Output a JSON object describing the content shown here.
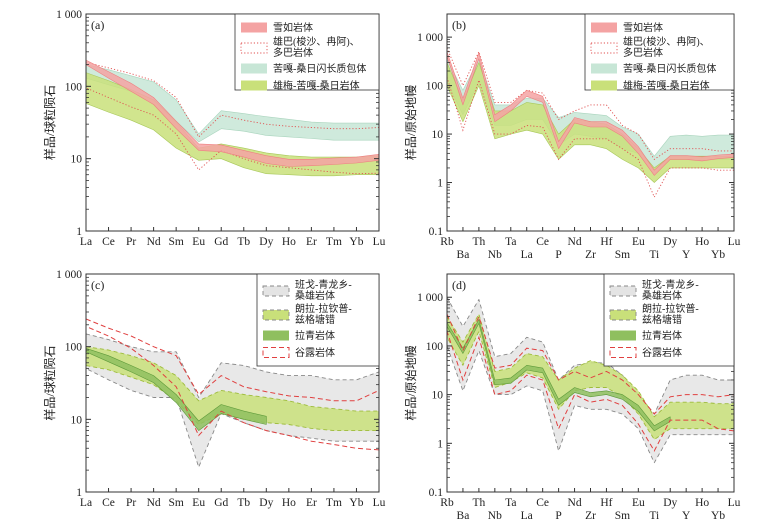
{
  "chart_data": [
    {
      "type": "area",
      "panel_label": "(a)",
      "ylabel": "样品/球粒陨石",
      "scale": "log",
      "ylim": [
        1,
        1000
      ],
      "yticks": [
        "1",
        "10",
        "100",
        "1 000"
      ],
      "categories": [
        "La",
        "Ce",
        "Pr",
        "Nd",
        "Sm",
        "Eu",
        "Gd",
        "Tb",
        "Dy",
        "Ho",
        "Er",
        "Tm",
        "Yb",
        "Lu"
      ],
      "legend_position": "top-right",
      "legend": [
        {
          "label": "雪如岩体",
          "style": "fill",
          "color": "#f4a3a3"
        },
        {
          "label": "雄巴(梭沙、冉阿)、\n多巴岩体",
          "style": "dotted",
          "color": "#e05050"
        },
        {
          "label": "苦嘎-桑日闪长质包体",
          "style": "fill",
          "color": "#c7e6d6"
        },
        {
          "label": "雄梅-苦嘎-桑日岩体",
          "style": "fill",
          "color": "#c9e07a"
        }
      ],
      "series": [
        {
          "name": "苦嘎-桑日闪长质包体",
          "style": "fill",
          "color": "#c7e6d6",
          "stroke": "#a9d4bd",
          "upper": [
            200,
            170,
            140,
            115,
            65,
            22,
            46,
            42,
            38,
            35,
            32,
            31,
            31,
            31
          ],
          "lower": [
            130,
            105,
            85,
            65,
            33,
            17,
            26,
            24,
            21,
            20,
            19,
            18,
            18,
            18
          ]
        },
        {
          "name": "雄梅-苦嘎-桑日岩体",
          "style": "fill",
          "color": "#c9e07a",
          "stroke": "#a8c85a",
          "upper": [
            155,
            120,
            90,
            65,
            32,
            14,
            16,
            14,
            12,
            11,
            10.5,
            10.5,
            10.5,
            11
          ],
          "lower": [
            58,
            44,
            34,
            25,
            14,
            9.5,
            10,
            7.5,
            6.2,
            6,
            5.8,
            5.8,
            6,
            6
          ]
        },
        {
          "name": "雄巴(梭沙、冉阿)、多巴岩体",
          "style": "dotted",
          "color": "#e05050",
          "upper": [
            215,
            180,
            150,
            120,
            70,
            20,
            40,
            34,
            30,
            28,
            27,
            26,
            26,
            27
          ],
          "lower": [
            95,
            70,
            52,
            40,
            22,
            7,
            13,
            10,
            8,
            7.5,
            7,
            6.5,
            6.2,
            6.3
          ]
        },
        {
          "name": "雪如岩体",
          "style": "fill",
          "color": "#f4a3a3",
          "stroke": "#ee8080",
          "upper": [
            230,
            160,
            110,
            70,
            33,
            16,
            15.5,
            13,
            11,
            9.8,
            9.8,
            10.2,
            10.5,
            11.5
          ],
          "lower": [
            200,
            130,
            85,
            56,
            26,
            13,
            12.5,
            10.5,
            8.6,
            7.8,
            8,
            8.3,
            8.7,
            9.5
          ]
        }
      ]
    },
    {
      "type": "area",
      "panel_label": "(b)",
      "ylabel": "样品/原始地幔",
      "scale": "log",
      "ylim": [
        0.1,
        3000
      ],
      "yticks": [
        "0.1",
        "1",
        "10",
        "100",
        "1 000"
      ],
      "categories": [
        "Rb",
        "Ba",
        "Th",
        "Nb",
        "Ta",
        "La",
        "Ce",
        "P",
        "Nd",
        "Zr",
        "Hf",
        "Sm",
        "Eu",
        "Ti",
        "Dy",
        "Y",
        "Ho",
        "Yb",
        "Lu"
      ],
      "legend_position": "top-right",
      "legend": [
        {
          "label": "雪如岩体",
          "style": "fill",
          "color": "#f4a3a3"
        },
        {
          "label": "雄巴(梭沙、冉阿)、\n多巴岩体",
          "style": "dotted",
          "color": "#e05050"
        },
        {
          "label": "苦嘎-桑日闪长质包体",
          "style": "fill",
          "color": "#c7e6d6"
        },
        {
          "label": "雄梅-苦嘎-桑日岩体",
          "style": "fill",
          "color": "#c9e07a"
        }
      ],
      "series": [
        {
          "name": "苦嘎-桑日闪长质包体",
          "style": "fill",
          "color": "#c7e6d6",
          "stroke": "#a9d4bd",
          "upper": [
            350,
            80,
            350,
            40,
            40,
            55,
            55,
            22,
            28,
            26,
            24,
            14,
            10,
            3.5,
            9,
            9.5,
            9,
            9.5,
            9.5
          ],
          "lower": [
            120,
            25,
            120,
            15,
            15,
            20,
            20,
            6,
            10,
            9,
            8,
            5,
            4,
            1.5,
            3,
            3,
            3,
            3,
            3
          ]
        },
        {
          "name": "雄梅-苦嘎-桑日岩体",
          "style": "fill",
          "color": "#c9e07a",
          "stroke": "#a8c85a",
          "upper": [
            300,
            50,
            300,
            30,
            30,
            45,
            40,
            10,
            20,
            18,
            16,
            10,
            5,
            2,
            3.5,
            3.5,
            3.5,
            3.5,
            3.5
          ],
          "lower": [
            100,
            18,
            100,
            8,
            10,
            12,
            10,
            3,
            6,
            6,
            5,
            3,
            2,
            1,
            2,
            2,
            2,
            2,
            2
          ]
        },
        {
          "name": "雄巴(梭沙、冉阿)、多巴岩体",
          "style": "dotted",
          "color": "#e05050",
          "upper": [
            600,
            100,
            500,
            45,
            45,
            80,
            70,
            20,
            30,
            40,
            40,
            15,
            10,
            3,
            5,
            5,
            5,
            4.5,
            4.5
          ],
          "lower": [
            150,
            12,
            130,
            10,
            10,
            15,
            14,
            3,
            8,
            8,
            8,
            5,
            3,
            0.5,
            2,
            2,
            2,
            1.8,
            1.8
          ]
        },
        {
          "name": "雪如岩体",
          "style": "fill",
          "color": "#f4a3a3",
          "stroke": "#ee8080",
          "upper": [
            500,
            55,
            480,
            25,
            40,
            80,
            60,
            7,
            22,
            18,
            18,
            12,
            5.5,
            1.8,
            3.6,
            3.6,
            3.4,
            3.7,
            3.9
          ],
          "lower": [
            400,
            40,
            360,
            18,
            30,
            60,
            45,
            5,
            17,
            14,
            14,
            9,
            4,
            1.4,
            3,
            3,
            2.8,
            3.1,
            3.3
          ]
        }
      ]
    },
    {
      "type": "area",
      "panel_label": "(c)",
      "ylabel": "样品/球粒陨石",
      "scale": "log",
      "ylim": [
        1,
        1000
      ],
      "yticks": [
        "1",
        "10",
        "100",
        "1 000"
      ],
      "categories": [
        "La",
        "Ce",
        "Pr",
        "Nd",
        "Sm",
        "Eu",
        "Gd",
        "Tb",
        "Dy",
        "Ho",
        "Er",
        "Tm",
        "Yb",
        "Lu"
      ],
      "legend_position": "top-right",
      "legend": [
        {
          "label": "班戈-青龙乡-\n桑雄岩体",
          "style": "dashed-fill",
          "color": "#e4e4e4"
        },
        {
          "label": "朗拉-拉钦普-\n兹格塘错",
          "style": "dashed-fill",
          "color": "#c9e07a"
        },
        {
          "label": "拉青岩体",
          "style": "fill",
          "color": "#8fbf5f"
        },
        {
          "label": "谷露岩体",
          "style": "dashed",
          "color": "#e04040"
        }
      ],
      "series": [
        {
          "name": "班戈-青龙乡-桑雄岩体",
          "style": "dashed-fill",
          "color": "#e4e4e4",
          "stroke": "#888888",
          "upper": [
            150,
            125,
            100,
            85,
            85,
            20,
            60,
            55,
            45,
            40,
            40,
            35,
            35,
            45
          ],
          "lower": [
            50,
            35,
            25,
            20,
            20,
            2.2,
            12,
            9,
            7,
            6,
            5.5,
            5,
            5,
            5
          ]
        },
        {
          "name": "朗拉-拉钦普-兹格塘错",
          "style": "dashed-fill",
          "color": "#c9e07a",
          "stroke": "#9ebc3c",
          "upper": [
            100,
            90,
            75,
            60,
            40,
            18,
            25,
            22,
            20,
            18,
            15,
            14,
            13,
            13
          ],
          "lower": [
            55,
            48,
            38,
            30,
            18,
            8.5,
            12,
            10,
            9,
            8.5,
            7.5,
            7,
            7,
            7
          ]
        },
        {
          "name": "拉青岩体",
          "style": "fill",
          "color": "#8fbf5f",
          "stroke": "#5e9a3a",
          "upper": [
            95,
            75,
            55,
            40,
            22,
            9.5,
            16,
            13,
            11
          ],
          "lower": [
            85,
            62,
            45,
            32,
            17,
            7,
            12,
            10,
            8.5
          ]
        },
        {
          "name": "谷露岩体",
          "style": "dashed",
          "color": "#e04040",
          "upper": [
            240,
            180,
            140,
            100,
            75,
            22,
            40,
            28,
            24,
            21,
            20,
            18,
            18,
            25
          ],
          "lower": [
            190,
            140,
            95,
            55,
            28,
            6,
            13,
            9,
            7,
            6,
            5,
            4.5,
            4,
            3.8
          ]
        }
      ]
    },
    {
      "type": "area",
      "panel_label": "(d)",
      "ylabel": "样品/原始地幔",
      "scale": "log",
      "ylim": [
        0.1,
        3000
      ],
      "yticks": [
        "0.1",
        "1",
        "10",
        "100",
        "1 000"
      ],
      "categories": [
        "Rb",
        "Ba",
        "Th",
        "Nb",
        "Ta",
        "La",
        "Ce",
        "P",
        "Nd",
        "Zr",
        "Hf",
        "Sm",
        "Eu",
        "Ti",
        "Dy",
        "Y",
        "Ho",
        "Yb",
        "Lu"
      ],
      "legend_position": "top-right",
      "legend": [
        {
          "label": "班戈-青龙乡-\n桑雄岩体",
          "style": "dashed-fill",
          "color": "#e4e4e4"
        },
        {
          "label": "朗拉-拉钦普-\n兹格塘错",
          "style": "dashed-fill",
          "color": "#c9e07a"
        },
        {
          "label": "拉青岩体",
          "style": "fill",
          "color": "#8fbf5f"
        },
        {
          "label": "谷露岩体",
          "style": "dashed",
          "color": "#e04040"
        }
      ],
      "series": [
        {
          "name": "班戈-青龙乡-桑雄岩体",
          "style": "dashed-fill",
          "color": "#e4e4e4",
          "stroke": "#888888",
          "upper": [
            1000,
            250,
            900,
            60,
            70,
            150,
            120,
            20,
            40,
            45,
            45,
            25,
            10,
            4,
            20,
            25,
            25,
            20,
            20
          ],
          "lower": [
            100,
            12,
            80,
            10,
            10,
            15,
            12,
            0.7,
            6,
            5,
            5,
            4,
            2,
            0.4,
            1.5,
            1.5,
            1.5,
            1.5,
            1.5
          ]
        },
        {
          "name": "朗拉-拉钦普-兹格塘错",
          "style": "dashed-fill",
          "color": "#c9e07a",
          "stroke": "#9ebc3c",
          "upper": [
            400,
            120,
            450,
            30,
            35,
            70,
            60,
            20,
            35,
            50,
            40,
            25,
            12,
            3.5,
            7,
            7,
            7,
            6.5,
            6.5
          ],
          "lower": [
            150,
            40,
            200,
            14,
            18,
            28,
            22,
            5,
            12,
            14,
            14,
            9,
            4,
            1.2,
            2,
            2,
            2,
            2,
            2
          ]
        },
        {
          "name": "拉青岩体",
          "style": "fill",
          "color": "#8fbf5f",
          "stroke": "#5e9a3a",
          "upper": [
            300,
            90,
            350,
            20,
            22,
            40,
            35,
            8,
            14,
            11,
            12,
            10,
            6,
            2.3,
            3.5
          ],
          "lower": [
            250,
            70,
            290,
            16,
            17,
            32,
            28,
            6,
            11,
            9,
            10,
            8,
            4.5,
            1.8,
            2.8
          ]
        },
        {
          "name": "谷露岩体",
          "style": "dashed",
          "color": "#e04040",
          "upper": [
            450,
            80,
            400,
            35,
            40,
            90,
            80,
            20,
            30,
            22,
            30,
            20,
            10,
            4,
            9,
            10,
            10,
            9,
            10
          ],
          "lower": [
            200,
            20,
            150,
            10,
            12,
            25,
            20,
            2,
            10,
            7,
            8,
            6,
            2.5,
            0.7,
            3,
            3,
            3,
            2,
            1.8
          ]
        }
      ]
    }
  ]
}
